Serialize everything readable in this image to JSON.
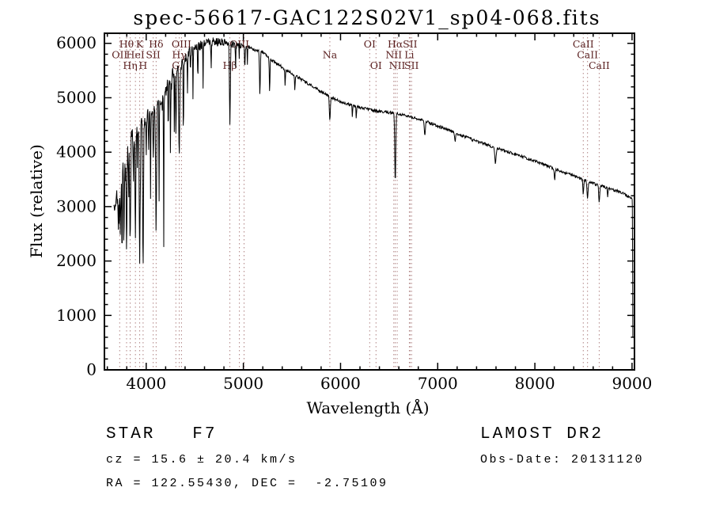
{
  "chart_data": {
    "type": "line",
    "title": "spec-56617-GAC122S02V1_sp04-068.fits",
    "xlabel": "Wavelength (Å)",
    "ylabel": "Flux (relative)",
    "xlim": [
      3570,
      9025
    ],
    "ylim": [
      0,
      6185
    ],
    "xticks": [
      4000,
      5000,
      6000,
      7000,
      8000,
      9000
    ],
    "yticks": [
      0,
      1000,
      2000,
      3000,
      4000,
      5000,
      6000
    ],
    "x_minor_step": 200,
    "y_minor_step": 200,
    "grid": false,
    "legend": "none",
    "line_color": "#000000",
    "marker_line_color": "#b08383",
    "marker_label_color": "#5a1f1f",
    "wl_start": 3665,
    "wl_end": 9002,
    "step": 4,
    "noise": {
      "base": 26,
      "blue_factor": 0.105,
      "spike_limit": 4450,
      "spike_prob": 0.12,
      "spike_scale": 1.1,
      "seed": 20131120
    },
    "continuum_format": [
      "wavelength_angstrom",
      "flux_relative"
    ],
    "continuum": [
      [
        3650,
        2900
      ],
      [
        3700,
        3200
      ],
      [
        3750,
        3600
      ],
      [
        3800,
        3950
      ],
      [
        3850,
        4250
      ],
      [
        3900,
        4450
      ],
      [
        3950,
        4550
      ],
      [
        4000,
        4620
      ],
      [
        4050,
        4700
      ],
      [
        4100,
        4800
      ],
      [
        4150,
        4950
      ],
      [
        4200,
        5150
      ],
      [
        4250,
        5350
      ],
      [
        4300,
        5500
      ],
      [
        4350,
        5600
      ],
      [
        4400,
        5750
      ],
      [
        4450,
        5850
      ],
      [
        4500,
        5900
      ],
      [
        4550,
        5950
      ],
      [
        4600,
        6000
      ],
      [
        4700,
        6030
      ],
      [
        4800,
        6020
      ],
      [
        4900,
        5980
      ],
      [
        5000,
        5950
      ],
      [
        5100,
        5900
      ],
      [
        5150,
        5870
      ],
      [
        5200,
        5840
      ],
      [
        5250,
        5750
      ],
      [
        5300,
        5680
      ],
      [
        5400,
        5560
      ],
      [
        5500,
        5450
      ],
      [
        5600,
        5330
      ],
      [
        5700,
        5220
      ],
      [
        5800,
        5110
      ],
      [
        5900,
        5010
      ],
      [
        6000,
        4930
      ],
      [
        6100,
        4870
      ],
      [
        6200,
        4820
      ],
      [
        6300,
        4780
      ],
      [
        6400,
        4750
      ],
      [
        6500,
        4730
      ],
      [
        6600,
        4700
      ],
      [
        6700,
        4660
      ],
      [
        6800,
        4610
      ],
      [
        6900,
        4550
      ],
      [
        7000,
        4480
      ],
      [
        7100,
        4410
      ],
      [
        7200,
        4340
      ],
      [
        7300,
        4270
      ],
      [
        7400,
        4200
      ],
      [
        7500,
        4140
      ],
      [
        7600,
        4080
      ],
      [
        7700,
        4020
      ],
      [
        7800,
        3960
      ],
      [
        7900,
        3900
      ],
      [
        8000,
        3840
      ],
      [
        8100,
        3770
      ],
      [
        8200,
        3700
      ],
      [
        8300,
        3630
      ],
      [
        8400,
        3560
      ],
      [
        8500,
        3490
      ],
      [
        8600,
        3430
      ],
      [
        8700,
        3370
      ],
      [
        8800,
        3310
      ],
      [
        8900,
        3250
      ],
      [
        9000,
        3150
      ],
      [
        9010,
        3000
      ]
    ],
    "absorption_lines_format": [
      "center_angstrom",
      "depth_flux",
      "fwhm_angstrom"
    ],
    "absorption_lines": [
      [
        3712,
        700,
        6
      ],
      [
        3722,
        900,
        6
      ],
      [
        3734,
        1100,
        7
      ],
      [
        3750,
        1300,
        7
      ],
      [
        3771,
        1500,
        8
      ],
      [
        3798,
        1800,
        9
      ],
      [
        3820,
        1000,
        6
      ],
      [
        3835,
        2000,
        9
      ],
      [
        3868,
        900,
        6
      ],
      [
        3889,
        2100,
        9
      ],
      [
        3910,
        800,
        5
      ],
      [
        3933,
        2700,
        10
      ],
      [
        3968,
        2800,
        10
      ],
      [
        4000,
        700,
        5
      ],
      [
        4026,
        800,
        6
      ],
      [
        4045,
        1600,
        5
      ],
      [
        4072,
        900,
        6
      ],
      [
        4102,
        2200,
        11
      ],
      [
        4132,
        1900,
        5
      ],
      [
        4180,
        3000,
        5
      ],
      [
        4227,
        1000,
        6
      ],
      [
        4250,
        1500,
        5
      ],
      [
        4290,
        1200,
        4
      ],
      [
        4305,
        1100,
        10
      ],
      [
        4340,
        1700,
        11
      ],
      [
        4383,
        1500,
        6
      ],
      [
        4425,
        700,
        5
      ],
      [
        4455,
        600,
        5
      ],
      [
        4481,
        900,
        5
      ],
      [
        4531,
        600,
        6
      ],
      [
        4585,
        800,
        5
      ],
      [
        4668,
        500,
        6
      ],
      [
        4861,
        1450,
        11
      ],
      [
        4920,
        400,
        6
      ],
      [
        4957,
        300,
        5
      ],
      [
        5015,
        400,
        6
      ],
      [
        5041,
        300,
        5
      ],
      [
        5170,
        800,
        10
      ],
      [
        5270,
        600,
        8
      ],
      [
        5430,
        300,
        7
      ],
      [
        5530,
        300,
        7
      ],
      [
        5890,
        450,
        11
      ],
      [
        6122,
        250,
        6
      ],
      [
        6162,
        250,
        6
      ],
      [
        6563,
        1300,
        12
      ],
      [
        6867,
        280,
        12
      ],
      [
        7180,
        180,
        10
      ],
      [
        7594,
        300,
        16
      ],
      [
        8204,
        220,
        10
      ],
      [
        8498,
        250,
        10
      ],
      [
        8542,
        330,
        12
      ],
      [
        8662,
        300,
        12
      ],
      [
        8750,
        160,
        8
      ]
    ],
    "end_drop": [
      [
        9003,
        3000
      ],
      [
        9006,
        1700
      ],
      [
        9008,
        600
      ]
    ],
    "spectral_line_markers": [
      {
        "wavelength": 3727,
        "label": "OII",
        "row": 2
      },
      {
        "wavelength": 3798,
        "label": "Hθ",
        "row": 1
      },
      {
        "wavelength": 3835,
        "label": "Hη",
        "row": 3
      },
      {
        "wavelength": 3889,
        "label": "HeI",
        "row": 2
      },
      {
        "wavelength": 3933,
        "label": "K",
        "row": 1
      },
      {
        "wavelength": 3968,
        "label": "H",
        "row": 3
      },
      {
        "wavelength": 4072,
        "label": "SII",
        "row": 2
      },
      {
        "wavelength": 4102,
        "label": "Hδ",
        "row": 1
      },
      {
        "wavelength": 4305,
        "label": "G",
        "row": 3
      },
      {
        "wavelength": 4340,
        "label": "Hγ",
        "row": 2
      },
      {
        "wavelength": 4363,
        "label": "OIII",
        "row": 1
      },
      {
        "wavelength": 4861,
        "label": "Hβ",
        "row": 3
      },
      {
        "wavelength": 4959,
        "label": "OIII",
        "row": 1
      },
      {
        "wavelength": 5007,
        "label": "",
        "row": 1
      },
      {
        "wavelength": 5890,
        "label": "Na",
        "row": 2
      },
      {
        "wavelength": 6300,
        "label": "OI",
        "row": 1
      },
      {
        "wavelength": 6365,
        "label": "OI",
        "row": 3
      },
      {
        "wavelength": 6548,
        "label": "NII",
        "row": 2
      },
      {
        "wavelength": 6563,
        "label": "Hα",
        "row": 1
      },
      {
        "wavelength": 6583,
        "label": "NII",
        "row": 3
      },
      {
        "wavelength": 6708,
        "label": "Li",
        "row": 2
      },
      {
        "wavelength": 6716,
        "label": "SII",
        "row": 1
      },
      {
        "wavelength": 6731,
        "label": "SII",
        "row": 3
      },
      {
        "wavelength": 8498,
        "label": "CaII",
        "row": 1
      },
      {
        "wavelength": 8542,
        "label": "CaII",
        "row": 2
      },
      {
        "wavelength": 8662,
        "label": "CaII",
        "row": 3
      }
    ]
  },
  "annotations": {
    "class_label": "STAR   F7",
    "cz_line": "cz = 15.6 ± 20.4 km/s",
    "radec_line": "RA = 122.55430, DEC =  -2.75109",
    "survey": "LAMOST DR2",
    "obs_date": "Obs-Date: 20131120"
  }
}
